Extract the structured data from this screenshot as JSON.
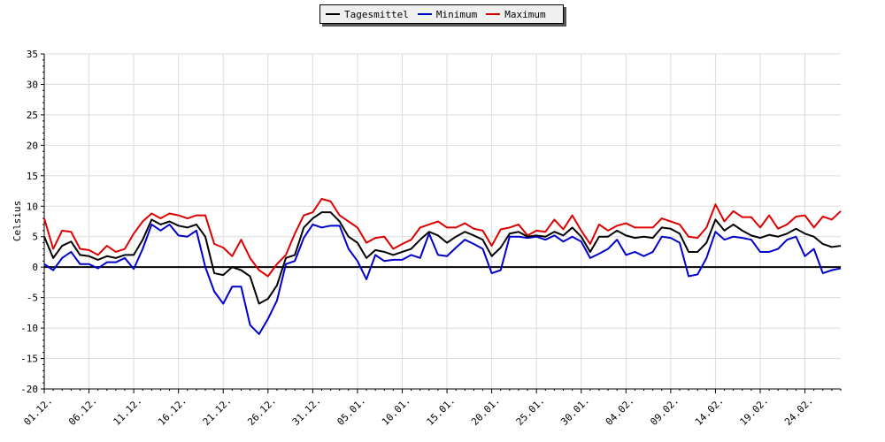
{
  "chart_data": {
    "type": "line",
    "ylabel": "Celsius",
    "ylim": [
      -20,
      35
    ],
    "yticks": [
      35,
      30,
      25,
      20,
      15,
      10,
      5,
      0,
      -5,
      -10,
      -15,
      -20
    ],
    "xlabels": [
      "01.12.",
      "06.12.",
      "11.12.",
      "16.12.",
      "21.12.",
      "26.12.",
      "31.12.",
      "05.01.",
      "10.01.",
      "15.01.",
      "20.01.",
      "25.01.",
      "30.01.",
      "04.02.",
      "09.02.",
      "14.02.",
      "19.02.",
      "24.02."
    ],
    "grid": true,
    "legend_position": "top-center",
    "series": [
      {
        "name": "Tagesmittel",
        "color": "#000000",
        "values": [
          5,
          1.5,
          3.5,
          4.2,
          2,
          1.8,
          1.2,
          1.8,
          1.5,
          2,
          2,
          4.5,
          7.8,
          7,
          7.5,
          6.8,
          6.5,
          7,
          5,
          -1,
          -1.3,
          0,
          -0.5,
          -1.5,
          -6,
          -5.2,
          -3,
          1.5,
          2,
          6.5,
          8,
          9,
          9,
          7.5,
          5,
          4,
          1.5,
          2.8,
          2.5,
          2,
          2.5,
          3,
          4.5,
          5.8,
          5.2,
          4,
          5,
          5.8,
          5.2,
          4.5,
          1.8,
          3.2,
          5.5,
          5.8,
          5,
          5.2,
          5,
          5.8,
          5.2,
          6.5,
          5,
          2.5,
          5,
          5,
          6,
          5.2,
          4.8,
          5,
          4.8,
          6.5,
          6.3,
          5.5,
          2.5,
          2.5,
          4,
          7.8,
          6,
          7,
          6,
          5.2,
          4.8,
          5.3,
          5,
          5.5,
          6.3,
          5.5,
          5,
          3.8,
          3.3,
          3.5
        ]
      },
      {
        "name": "Minimum",
        "color": "#0000cc",
        "values": [
          0.5,
          -0.5,
          1.5,
          2.5,
          0.5,
          0.5,
          -0.2,
          0.8,
          0.8,
          1.5,
          -0.3,
          3,
          7,
          6,
          7,
          5.2,
          5,
          6,
          0,
          -4,
          -6,
          -3.2,
          -3.2,
          -9.5,
          -11,
          -8.5,
          -5.5,
          0.5,
          1,
          4.8,
          7,
          6.5,
          6.8,
          6.8,
          3,
          1,
          -2,
          2,
          1,
          1.2,
          1.2,
          2,
          1.5,
          5.5,
          2,
          1.8,
          3.2,
          4.5,
          3.8,
          3,
          -1,
          -0.5,
          5,
          5,
          4.8,
          5,
          4.5,
          5.2,
          4.2,
          5,
          4.2,
          1.5,
          2.2,
          3,
          4.5,
          2,
          2.5,
          1.8,
          2.5,
          5,
          4.8,
          4,
          -1.5,
          -1.2,
          1.5,
          5.8,
          4.5,
          5,
          4.8,
          4.5,
          2.5,
          2.5,
          3,
          4.5,
          5,
          1.8,
          3,
          -1,
          -0.5,
          -0.2
        ]
      },
      {
        "name": "Maximum",
        "color": "#dd0000",
        "values": [
          8,
          3,
          6,
          5.8,
          3,
          2.8,
          2,
          3.5,
          2.5,
          3,
          5.5,
          7.5,
          8.8,
          8,
          8.8,
          8.5,
          8,
          8.5,
          8.5,
          3.8,
          3.2,
          1.8,
          4.5,
          1.5,
          -0.5,
          -1.5,
          0.5,
          2,
          5.5,
          8.5,
          9,
          11.2,
          10.8,
          8.5,
          7.5,
          6.5,
          4,
          4.8,
          5,
          3,
          3.8,
          4.5,
          6.5,
          7,
          7.5,
          6.5,
          6.5,
          7.2,
          6.3,
          6,
          3.5,
          6.2,
          6.5,
          7,
          5.2,
          6,
          5.8,
          7.8,
          6.2,
          8.5,
          6,
          3.8,
          7,
          6,
          6.8,
          7.2,
          6.5,
          6.5,
          6.5,
          8,
          7.5,
          7,
          5,
          4.8,
          6.5,
          10.3,
          7.5,
          9.2,
          8.2,
          8.2,
          6.5,
          8.5,
          6.3,
          7,
          8.3,
          8.5,
          6.5,
          8.3,
          7.8,
          9.2
        ]
      }
    ]
  }
}
